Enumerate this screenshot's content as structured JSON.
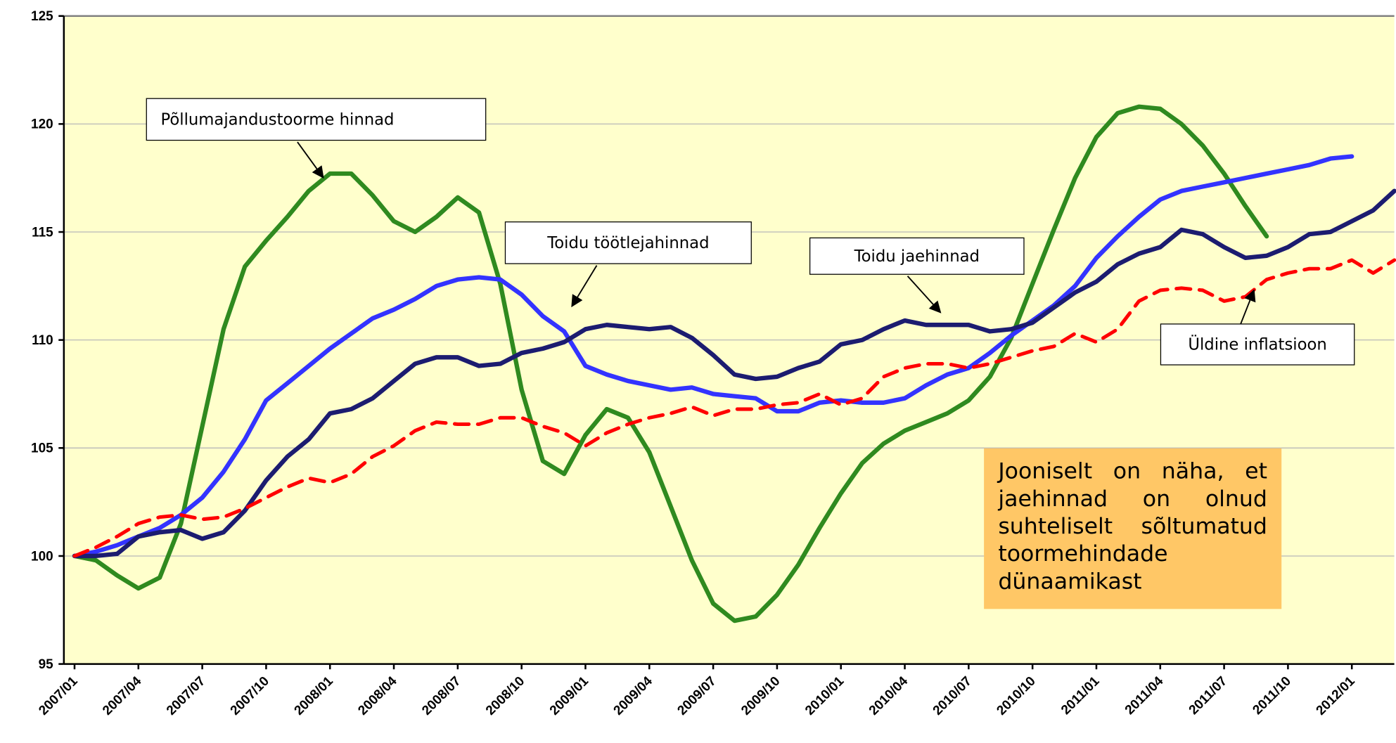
{
  "chart_data": {
    "type": "line",
    "categories": [
      "2007/01",
      null,
      null,
      "2007/04",
      null,
      null,
      "2007/07",
      null,
      null,
      "2007/10",
      null,
      null,
      "2008/01",
      null,
      null,
      "2008/04",
      null,
      null,
      "2008/07",
      null,
      null,
      "2008/10",
      null,
      null,
      "2009/01",
      null,
      null,
      "2009/04",
      null,
      null,
      "2009/07",
      null,
      null,
      "2009/10",
      null,
      null,
      "2010/01",
      null,
      null,
      "2010/04",
      null,
      null,
      "2010/07",
      null,
      null,
      "2010/10",
      null,
      null,
      "2011/01",
      null,
      null,
      "2011/04",
      null,
      null,
      "2011/07",
      null,
      null,
      "2011/10",
      null,
      null,
      "2012/01",
      null,
      null
    ],
    "ylim": [
      95,
      125
    ],
    "yticks": [
      95,
      100,
      105,
      110,
      115,
      120,
      125
    ],
    "grid": true,
    "series": [
      {
        "name": "Põllumajandustoorme hinnad",
        "color": "#2f8a1f",
        "dashed": false,
        "values": [
          100,
          99.8,
          99.1,
          98.5,
          99.0,
          101.5,
          106,
          110.5,
          113.4,
          114.6,
          115.7,
          116.9,
          117.7,
          117.7,
          116.7,
          115.5,
          115.0,
          115.7,
          116.6,
          115.9,
          112.6,
          107.7,
          104.4,
          103.8,
          105.6,
          106.8,
          106.4,
          104.8,
          102.3,
          99.8,
          97.8,
          97.0,
          97.2,
          98.2,
          99.6,
          101.3,
          102.9,
          104.3,
          105.2,
          105.8,
          106.2,
          106.6,
          107.2,
          108.3,
          110.1,
          112.6,
          115.1,
          117.5,
          119.4,
          120.5,
          120.8,
          120.7,
          120.0,
          119.0,
          117.7,
          116.2,
          114.8,
          null,
          null,
          null,
          null,
          null,
          null
        ]
      },
      {
        "name": "Toidu töötlejahinnad",
        "color": "#3333ff",
        "dashed": false,
        "values": [
          100,
          100.2,
          100.5,
          100.9,
          101.3,
          101.9,
          102.7,
          103.9,
          105.4,
          107.2,
          108.0,
          108.8,
          109.6,
          110.3,
          111.0,
          111.4,
          111.9,
          112.5,
          112.8,
          112.9,
          112.8,
          112.1,
          111.1,
          110.4,
          108.8,
          108.4,
          108.1,
          107.9,
          107.7,
          107.8,
          107.5,
          107.4,
          107.3,
          106.7,
          106.7,
          107.1,
          107.2,
          107.1,
          107.1,
          107.3,
          107.9,
          108.4,
          108.7,
          109.4,
          110.2,
          110.9,
          111.6,
          112.5,
          113.8,
          114.8,
          115.7,
          116.5,
          116.9,
          117.1,
          117.3,
          117.5,
          117.7,
          117.9,
          118.1,
          118.4,
          118.5,
          null,
          null
        ]
      },
      {
        "name": "Toidu jaehinnad",
        "color": "#1c1c70",
        "dashed": false,
        "values": [
          100,
          100,
          100.1,
          100.9,
          101.1,
          101.2,
          100.8,
          101.1,
          102.1,
          103.5,
          104.6,
          105.4,
          106.6,
          106.8,
          107.3,
          108.1,
          108.9,
          109.2,
          109.2,
          108.8,
          108.9,
          109.4,
          109.6,
          109.9,
          110.5,
          110.7,
          110.6,
          110.5,
          110.6,
          110.1,
          109.3,
          108.4,
          108.2,
          108.3,
          108.7,
          109.0,
          109.8,
          110.0,
          110.5,
          110.9,
          110.7,
          110.7,
          110.7,
          110.4,
          110.5,
          110.8,
          111.5,
          112.2,
          112.7,
          113.5,
          114.0,
          114.3,
          115.1,
          114.9,
          114.3,
          113.8,
          113.9,
          114.3,
          114.9,
          115.0,
          115.5,
          116.0,
          116.9
        ]
      },
      {
        "name": "Üldine inflatsioon",
        "color": "#ff0000",
        "dashed": true,
        "values": [
          100,
          100.4,
          100.9,
          101.5,
          101.8,
          101.9,
          101.7,
          101.8,
          102.2,
          102.7,
          103.2,
          103.6,
          103.4,
          103.8,
          104.6,
          105.1,
          105.8,
          106.2,
          106.1,
          106.1,
          106.4,
          106.4,
          106.0,
          105.7,
          105.1,
          105.7,
          106.1,
          106.4,
          106.6,
          106.9,
          106.5,
          106.8,
          106.8,
          107.0,
          107.1,
          107.5,
          107.0,
          107.3,
          108.3,
          108.7,
          108.9,
          108.9,
          108.7,
          108.9,
          109.2,
          109.5,
          109.7,
          110.3,
          109.9,
          110.5,
          111.8,
          112.3,
          112.4,
          112.3,
          111.8,
          112.0,
          112.8,
          113.1,
          113.3,
          113.3,
          113.7,
          113.1,
          113.7
        ]
      }
    ],
    "annotations": [
      "Põllumajandustoorme hinnad",
      "Toidu töötlejahinnad",
      "Toidu jaehinnad",
      "Üldine inflatsioon"
    ],
    "note": "Jooniselt on näha, et jaehinnad on olnud suhteliselt sõltumatud toormehindade dünaamikast"
  }
}
